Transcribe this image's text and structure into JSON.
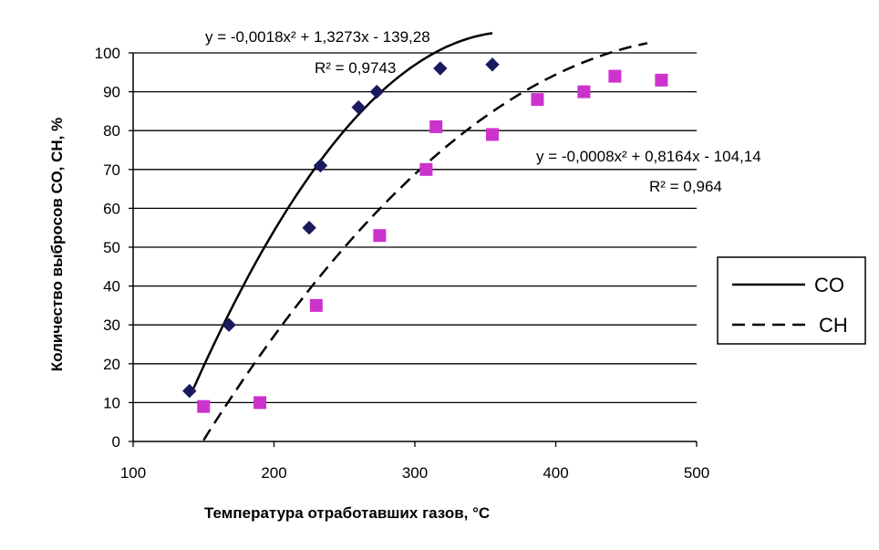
{
  "chart_data": {
    "type": "scatter",
    "title": "",
    "xlabel": "Температура отработавших газов, °C",
    "ylabel": "Количество выбросов СО, СН, %",
    "xlim": [
      100,
      500
    ],
    "ylim": [
      0,
      100
    ],
    "xticks": [
      "100",
      "200",
      "300",
      "400",
      "500"
    ],
    "yticks": [
      "0",
      "10",
      "20",
      "30",
      "40",
      "50",
      "60",
      "70",
      "80",
      "90",
      "100"
    ],
    "grid": "horizontal",
    "legend_position": "right",
    "series": [
      {
        "name": "CO",
        "marker": "diamond",
        "marker_color": "#1a1a5e",
        "line_style": "solid",
        "points": [
          [
            140,
            13
          ],
          [
            168,
            30
          ],
          [
            225,
            55
          ],
          [
            233,
            71
          ],
          [
            260,
            86
          ],
          [
            273,
            90
          ],
          [
            318,
            96
          ],
          [
            355,
            97
          ]
        ],
        "trendline": {
          "equation": "y = -0,0018x² + 1,3273x - 139,28",
          "r2": "R² = 0,9743",
          "coefficients": [
            -0.0018,
            1.3273,
            -139.28
          ],
          "x_range": [
            143,
            355
          ]
        }
      },
      {
        "name": "CH",
        "marker": "square",
        "marker_color": "#cc33cc",
        "line_style": "dashed",
        "points": [
          [
            150,
            9
          ],
          [
            190,
            10
          ],
          [
            230,
            35
          ],
          [
            275,
            53
          ],
          [
            308,
            70
          ],
          [
            315,
            81
          ],
          [
            355,
            79
          ],
          [
            387,
            88
          ],
          [
            420,
            90
          ],
          [
            442,
            94
          ],
          [
            475,
            93
          ]
        ],
        "trendline": {
          "equation": "y = -0,0008x² + 0,8164x - 104,14",
          "r2": "R² = 0,964",
          "coefficients": [
            -0.0008,
            0.8164,
            -104.14
          ],
          "x_range": [
            150,
            465
          ]
        }
      }
    ]
  }
}
